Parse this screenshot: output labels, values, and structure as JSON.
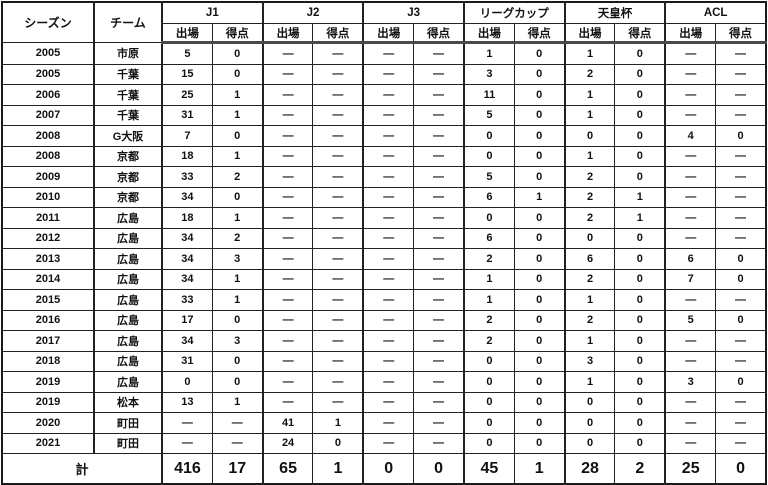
{
  "table": {
    "header": {
      "season": "シーズン",
      "team": "チーム",
      "groups": [
        {
          "label": "J1"
        },
        {
          "label": "J2"
        },
        {
          "label": "J3"
        },
        {
          "label": "リーグカップ"
        },
        {
          "label": "天皇杯"
        },
        {
          "label": "ACL"
        }
      ],
      "sub": {
        "apps": "出場",
        "goals": "得点"
      }
    },
    "rows": [
      {
        "season": "2005",
        "team": "市原",
        "cells": [
          "5",
          "0",
          "—",
          "—",
          "—",
          "—",
          "1",
          "0",
          "1",
          "0",
          "—",
          "—"
        ]
      },
      {
        "season": "2005",
        "team": "千葉",
        "cells": [
          "15",
          "0",
          "—",
          "—",
          "—",
          "—",
          "3",
          "0",
          "2",
          "0",
          "—",
          "—"
        ]
      },
      {
        "season": "2006",
        "team": "千葉",
        "cells": [
          "25",
          "1",
          "—",
          "—",
          "—",
          "—",
          "11",
          "0",
          "1",
          "0",
          "—",
          "—"
        ]
      },
      {
        "season": "2007",
        "team": "千葉",
        "cells": [
          "31",
          "1",
          "—",
          "—",
          "—",
          "—",
          "5",
          "0",
          "1",
          "0",
          "—",
          "—"
        ]
      },
      {
        "season": "2008",
        "team": "G大阪",
        "cells": [
          "7",
          "0",
          "—",
          "—",
          "—",
          "—",
          "0",
          "0",
          "0",
          "0",
          "4",
          "0"
        ]
      },
      {
        "season": "2008",
        "team": "京都",
        "cells": [
          "18",
          "1",
          "—",
          "—",
          "—",
          "—",
          "0",
          "0",
          "1",
          "0",
          "—",
          "—"
        ]
      },
      {
        "season": "2009",
        "team": "京都",
        "cells": [
          "33",
          "2",
          "—",
          "—",
          "—",
          "—",
          "5",
          "0",
          "2",
          "0",
          "—",
          "—"
        ]
      },
      {
        "season": "2010",
        "team": "京都",
        "cells": [
          "34",
          "0",
          "—",
          "—",
          "—",
          "—",
          "6",
          "1",
          "2",
          "1",
          "—",
          "—"
        ]
      },
      {
        "season": "2011",
        "team": "広島",
        "cells": [
          "18",
          "1",
          "—",
          "—",
          "—",
          "—",
          "0",
          "0",
          "2",
          "1",
          "—",
          "—"
        ]
      },
      {
        "season": "2012",
        "team": "広島",
        "cells": [
          "34",
          "2",
          "—",
          "—",
          "—",
          "—",
          "6",
          "0",
          "0",
          "0",
          "—",
          "—"
        ]
      },
      {
        "season": "2013",
        "team": "広島",
        "cells": [
          "34",
          "3",
          "—",
          "—",
          "—",
          "—",
          "2",
          "0",
          "6",
          "0",
          "6",
          "0"
        ]
      },
      {
        "season": "2014",
        "team": "広島",
        "cells": [
          "34",
          "1",
          "—",
          "—",
          "—",
          "—",
          "1",
          "0",
          "2",
          "0",
          "7",
          "0"
        ]
      },
      {
        "season": "2015",
        "team": "広島",
        "cells": [
          "33",
          "1",
          "—",
          "—",
          "—",
          "—",
          "1",
          "0",
          "1",
          "0",
          "—",
          "—"
        ]
      },
      {
        "season": "2016",
        "team": "広島",
        "cells": [
          "17",
          "0",
          "—",
          "—",
          "—",
          "—",
          "2",
          "0",
          "2",
          "0",
          "5",
          "0"
        ]
      },
      {
        "season": "2017",
        "team": "広島",
        "cells": [
          "34",
          "3",
          "—",
          "—",
          "—",
          "—",
          "2",
          "0",
          "1",
          "0",
          "—",
          "—"
        ]
      },
      {
        "season": "2018",
        "team": "広島",
        "cells": [
          "31",
          "0",
          "—",
          "—",
          "—",
          "—",
          "0",
          "0",
          "3",
          "0",
          "—",
          "—"
        ]
      },
      {
        "season": "2019",
        "team": "広島",
        "cells": [
          "0",
          "0",
          "—",
          "—",
          "—",
          "—",
          "0",
          "0",
          "1",
          "0",
          "3",
          "0"
        ]
      },
      {
        "season": "2019",
        "team": "松本",
        "cells": [
          "13",
          "1",
          "—",
          "—",
          "—",
          "—",
          "0",
          "0",
          "0",
          "0",
          "—",
          "—"
        ]
      },
      {
        "season": "2020",
        "team": "町田",
        "cells": [
          "—",
          "—",
          "41",
          "1",
          "—",
          "—",
          "0",
          "0",
          "0",
          "0",
          "—",
          "—"
        ]
      },
      {
        "season": "2021",
        "team": "町田",
        "cells": [
          "—",
          "—",
          "24",
          "0",
          "—",
          "—",
          "0",
          "0",
          "0",
          "0",
          "—",
          "—"
        ]
      }
    ],
    "total": {
      "label": "計",
      "cells": [
        "416",
        "17",
        "65",
        "1",
        "0",
        "0",
        "45",
        "1",
        "28",
        "2",
        "25",
        "0"
      ]
    }
  }
}
